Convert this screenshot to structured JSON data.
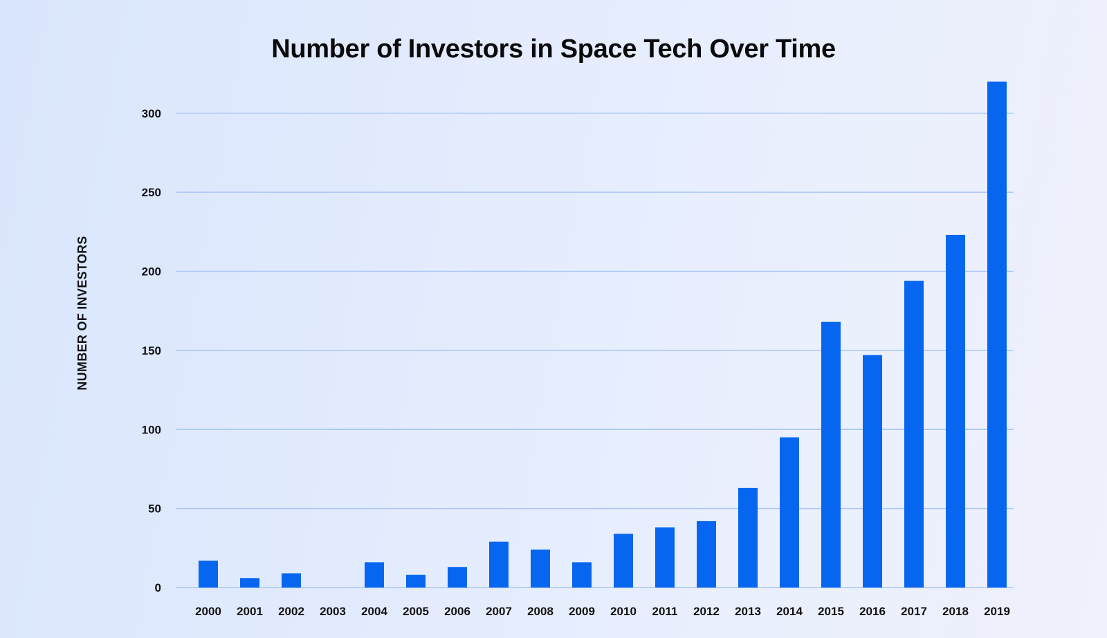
{
  "chart_data": {
    "type": "bar",
    "title": "Number of Investors in Space Tech Over Time",
    "xlabel": "",
    "ylabel": "NUMBER OF INVESTORS",
    "categories": [
      "2000",
      "2001",
      "2002",
      "2003",
      "2004",
      "2005",
      "2006",
      "2007",
      "2008",
      "2009",
      "2010",
      "2011",
      "2012",
      "2013",
      "2014",
      "2015",
      "2016",
      "2017",
      "2018",
      "2019"
    ],
    "values": [
      17,
      6,
      9,
      0,
      16,
      8,
      13,
      29,
      24,
      16,
      34,
      38,
      42,
      63,
      95,
      168,
      147,
      194,
      223,
      320
    ],
    "yticks": [
      "0",
      "50",
      "100",
      "150",
      "200",
      "250",
      "300"
    ],
    "ylim": [
      0,
      320
    ],
    "grid": true,
    "legend": "none",
    "bar_color": "#0666f0",
    "grid_color": "#a9c6f5"
  }
}
